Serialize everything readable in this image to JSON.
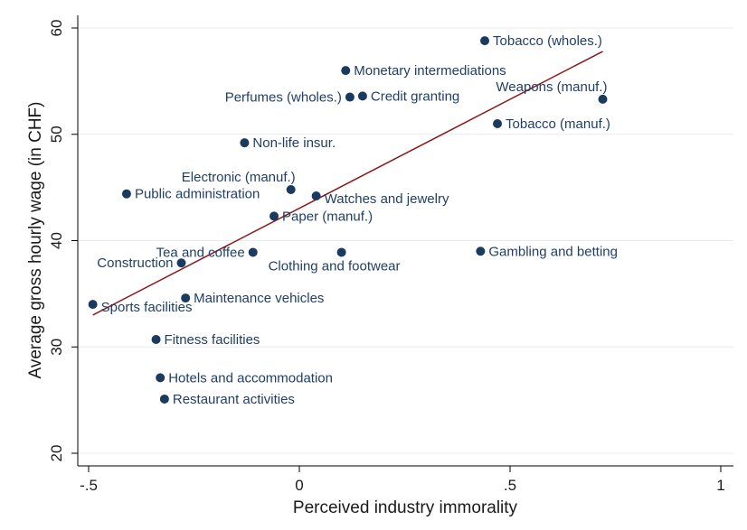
{
  "chart_data": {
    "type": "scatter",
    "xlabel": "Perceived industry immorality",
    "ylabel": "Average gross hourly wage (in CHF)",
    "xlim": [
      -0.5,
      1
    ],
    "ylim": [
      20,
      60
    ],
    "xticks": [
      -0.5,
      0,
      0.5,
      1
    ],
    "xtick_labels": [
      "-.5",
      "0",
      ".5",
      "1"
    ],
    "yticks": [
      20,
      30,
      40,
      50,
      60
    ],
    "ytick_labels": [
      "20",
      "30",
      "40",
      "50",
      "60"
    ],
    "grid": "horizontal",
    "marker_color": "#1a3a5f",
    "label_color": "#1f3f66",
    "fit_line_color": "#8b1a1a",
    "points": [
      {
        "label": "Tobacco (wholes.)",
        "x": 0.44,
        "y": 58.8,
        "pos": "right"
      },
      {
        "label": "Monetary intermediations",
        "x": 0.11,
        "y": 56.0,
        "pos": "right"
      },
      {
        "label": "Perfumes (wholes.)",
        "x": 0.12,
        "y": 53.5,
        "pos": "left"
      },
      {
        "label": "Credit granting",
        "x": 0.15,
        "y": 53.6,
        "pos": "right"
      },
      {
        "label": "Weapons (manuf.)",
        "x": 0.72,
        "y": 53.3,
        "pos": "above-left"
      },
      {
        "label": "Tobacco (manuf.)",
        "x": 0.47,
        "y": 51.0,
        "pos": "right"
      },
      {
        "label": "Non-life insur.",
        "x": -0.13,
        "y": 49.2,
        "pos": "right"
      },
      {
        "label": "Electronic (manuf.)",
        "x": -0.02,
        "y": 44.8,
        "pos": "above-left"
      },
      {
        "label": "Public administration",
        "x": -0.41,
        "y": 44.4,
        "pos": "right"
      },
      {
        "label": "Watches and jewelry",
        "x": 0.04,
        "y": 44.2,
        "pos": "right-below"
      },
      {
        "label": "Paper (manuf.)",
        "x": -0.06,
        "y": 42.3,
        "pos": "right"
      },
      {
        "label": "Tea and coffee",
        "x": -0.11,
        "y": 38.9,
        "pos": "left"
      },
      {
        "label": "Clothing and footwear",
        "x": 0.1,
        "y": 38.9,
        "pos": "below"
      },
      {
        "label": "Gambling and betting",
        "x": 0.43,
        "y": 39.0,
        "pos": "right"
      },
      {
        "label": "Construction",
        "x": -0.28,
        "y": 37.9,
        "pos": "left"
      },
      {
        "label": "Maintenance vehicles",
        "x": -0.27,
        "y": 34.6,
        "pos": "right"
      },
      {
        "label": "Sports facilities",
        "x": -0.49,
        "y": 34.0,
        "pos": "right-below"
      },
      {
        "label": "Fitness facilities",
        "x": -0.34,
        "y": 30.7,
        "pos": "right"
      },
      {
        "label": "Hotels and accommodation",
        "x": -0.33,
        "y": 27.1,
        "pos": "right"
      },
      {
        "label": "Restaurant activities",
        "x": -0.32,
        "y": 25.1,
        "pos": "right"
      }
    ],
    "fit_line": {
      "x1": -0.49,
      "y1": 33.0,
      "x2": 0.72,
      "y2": 57.8
    }
  }
}
